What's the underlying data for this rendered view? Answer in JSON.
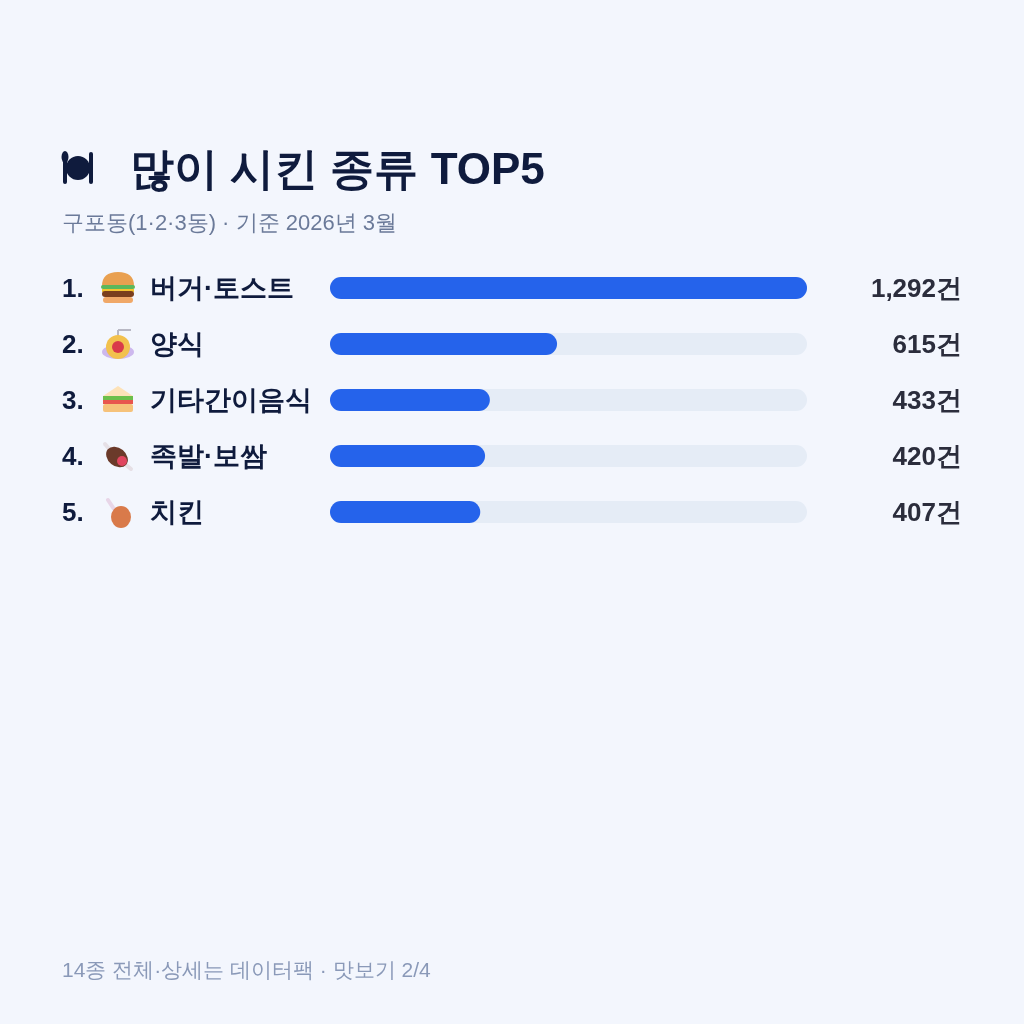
{
  "chart_data": {
    "type": "bar",
    "orientation": "horizontal",
    "title": "많이 시킨 종류 TOP5",
    "subtitle": "구포동(1·2·3동) · 기준 2026년 3월",
    "categories": [
      "1. 버거·토스트",
      "2. 양식",
      "3. 기타간이음식",
      "4. 족발·보쌈",
      "5. 치킨"
    ],
    "values": [
      1292,
      615,
      433,
      420,
      407
    ],
    "value_labels": [
      "1,292건",
      "615건",
      "433건",
      "420건",
      "407건"
    ],
    "color": "#2563eb",
    "xlim": [
      0,
      1292
    ],
    "tick_labels": "y",
    "annotations": [
      "14종 전체·상세는 데이터팩 · 맛보기 2/4"
    ]
  }
}
